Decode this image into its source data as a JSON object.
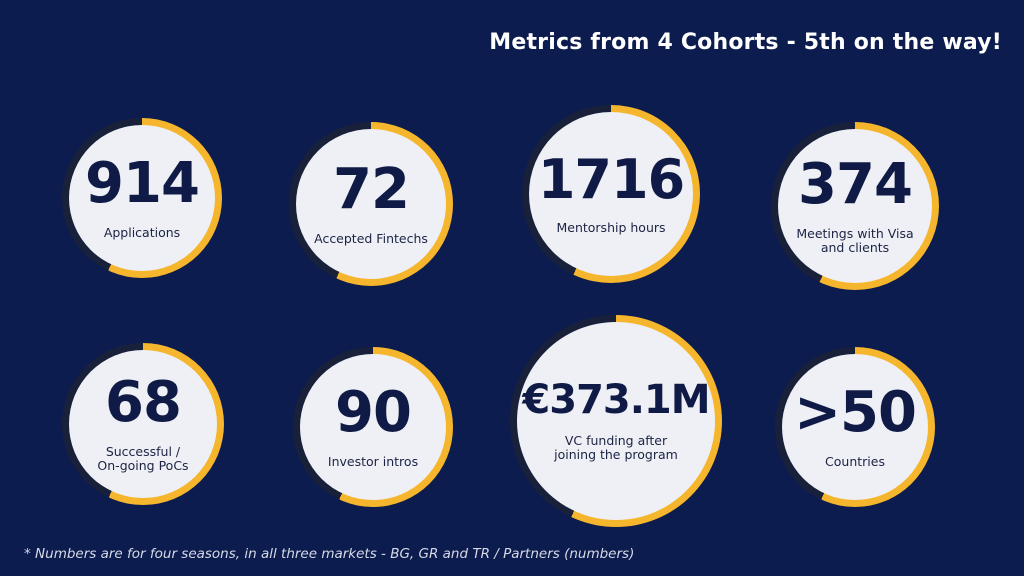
{
  "title": "Metrics from 4 Cohorts - 5th on the way!",
  "colors": {
    "background": "#0c1c4e",
    "ring_accent": "#f5b62d",
    "ring_dark": "#18203a",
    "disc": "#eef0f5",
    "value_text": "#0f1b46"
  },
  "metrics": [
    {
      "value": "914",
      "label": "Applications"
    },
    {
      "value": "72",
      "label": "Accepted Fintechs"
    },
    {
      "value": "1716",
      "label": "Mentorship hours"
    },
    {
      "value": "374",
      "label": "Meetings with Visa\nand clients"
    },
    {
      "value": "68",
      "label": "Successful /\nOn-going PoCs"
    },
    {
      "value": "90",
      "label": "Investor intros"
    },
    {
      "value": "€373.1M",
      "label": "VC funding after\njoining the program"
    },
    {
      "value": ">50",
      "label": "Countries"
    }
  ],
  "footnote": "* Numbers are for four seasons, in all three markets - BG, GR and TR  / Partners (numbers)"
}
